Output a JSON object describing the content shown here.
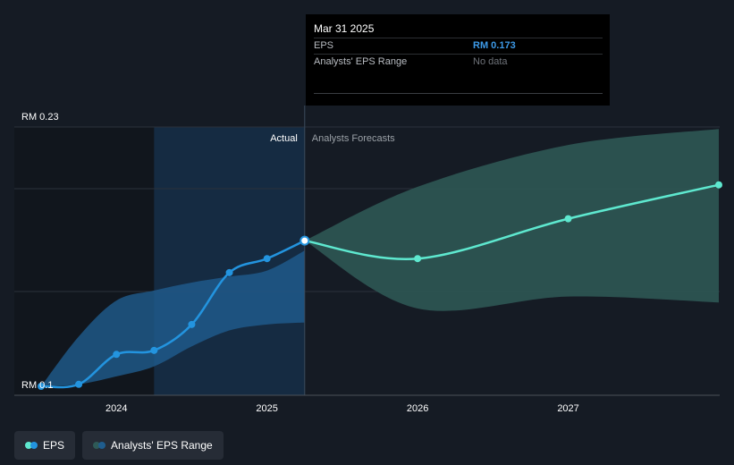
{
  "tooltip": {
    "date": "Mar 31 2025",
    "eps_label": "EPS",
    "eps_value": "RM 0.173",
    "range_label": "Analysts' EPS Range",
    "range_value": "No data"
  },
  "labels": {
    "actual": "Actual",
    "forecast": "Analysts Forecasts"
  },
  "legend": {
    "eps": "EPS",
    "range": "Analysts' EPS Range"
  },
  "colors": {
    "eps_line": "#2394df",
    "forecast_line": "#5ee8cf",
    "actual_band": "#1f5d8e",
    "forecast_band": "#2f5a57",
    "background": "#151b24"
  },
  "chart_data": {
    "type": "line",
    "ylim": [
      0.1,
      0.23
    ],
    "y_tick_labels": [
      "RM 0.23",
      "RM 0.1"
    ],
    "x_ticks": [
      {
        "x": 2024,
        "label": "2024"
      },
      {
        "x": 2025,
        "label": "2025"
      },
      {
        "x": 2026,
        "label": "2026"
      },
      {
        "x": 2027,
        "label": "2027"
      }
    ],
    "xlim": [
      2023.5,
      2028.0
    ],
    "divider_x": 2025.25,
    "shaded_past_start": 2024.25,
    "series": [
      {
        "name": "EPS",
        "kind": "actual",
        "points": [
          {
            "x": 2023.5,
            "y": 0.1
          },
          {
            "x": 2023.75,
            "y": 0.101
          },
          {
            "x": 2024.0,
            "y": 0.116
          },
          {
            "x": 2024.25,
            "y": 0.118
          },
          {
            "x": 2024.5,
            "y": 0.131
          },
          {
            "x": 2024.75,
            "y": 0.157
          },
          {
            "x": 2025.0,
            "y": 0.164
          },
          {
            "x": 2025.25,
            "y": 0.173
          }
        ]
      },
      {
        "name": "EPS",
        "kind": "forecast",
        "points": [
          {
            "x": 2025.25,
            "y": 0.173
          },
          {
            "x": 2026.0,
            "y": 0.164
          },
          {
            "x": 2027.0,
            "y": 0.184
          },
          {
            "x": 2028.0,
            "y": 0.201
          }
        ]
      }
    ],
    "actual_range": {
      "x": [
        2023.5,
        2023.75,
        2024.0,
        2024.25,
        2024.5,
        2024.75,
        2025.0,
        2025.25
      ],
      "high": [
        0.1,
        0.125,
        0.143,
        0.148,
        0.152,
        0.155,
        0.158,
        0.168
      ],
      "low": [
        0.1,
        0.101,
        0.105,
        0.11,
        0.12,
        0.128,
        0.131,
        0.132
      ]
    },
    "forecast_range": {
      "x": [
        2025.25,
        2026.0,
        2027.0,
        2028.0
      ],
      "high": [
        0.173,
        0.2,
        0.221,
        0.229
      ],
      "low": [
        0.173,
        0.139,
        0.145,
        0.142
      ]
    }
  }
}
